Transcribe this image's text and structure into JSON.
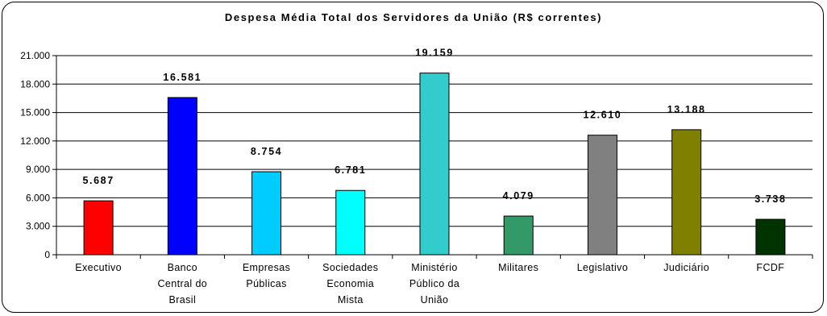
{
  "chart_data": {
    "type": "bar",
    "title": "Despesa Média Total dos Servidores da União (R$ correntes)",
    "categories": [
      [
        "Executivo"
      ],
      [
        "Banco",
        "Central do",
        "Brasil"
      ],
      [
        "Empresas",
        "Públicas"
      ],
      [
        "Sociedades",
        "Economia",
        "Mista"
      ],
      [
        "Ministério",
        "Público da",
        "União"
      ],
      [
        "Militares"
      ],
      [
        "Legislativo"
      ],
      [
        "Judiciário"
      ],
      [
        "FCDF"
      ]
    ],
    "values": [
      5687,
      16581,
      8754,
      6781,
      19159,
      4079,
      12610,
      13188,
      3738
    ],
    "value_labels": [
      "5.687",
      "16.581",
      "8.754",
      "6.781",
      "19.159",
      "4.079",
      "12.610",
      "13.188",
      "3.738"
    ],
    "bar_colors": [
      "#ff0000",
      "#0000ff",
      "#00ccff",
      "#00ffff",
      "#33cccc",
      "#339966",
      "#808080",
      "#808000",
      "#003300"
    ],
    "yticks": [
      0,
      3000,
      6000,
      9000,
      12000,
      15000,
      18000,
      21000
    ],
    "ytick_labels": [
      "0",
      "3.000",
      "6.000",
      "9.000",
      "12.000",
      "15.000",
      "18.000",
      "21.000"
    ],
    "ylim": [
      0,
      21000
    ],
    "grid": true,
    "legend": false
  }
}
